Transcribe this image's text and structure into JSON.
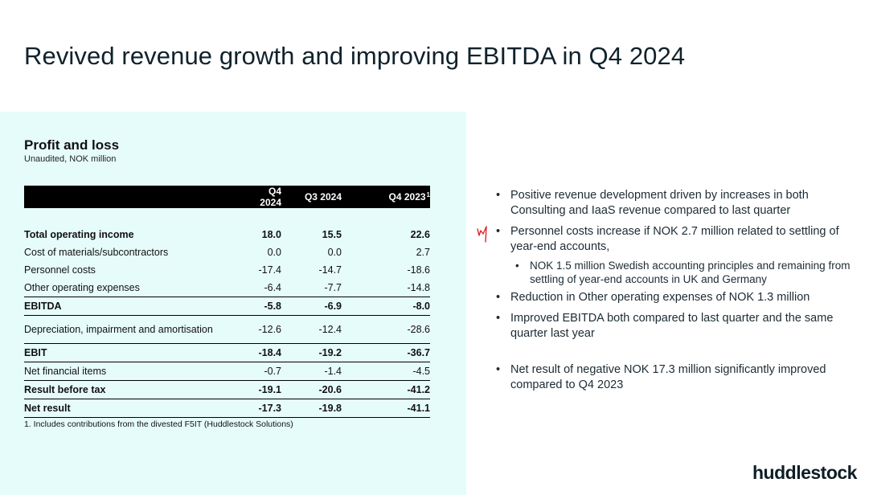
{
  "slide": {
    "title": "Revived revenue growth and improving EBITDA in Q4 2024"
  },
  "profit_loss": {
    "title": "Profit and loss",
    "subtitle": "Unaudited, NOK million",
    "columns": [
      "Q4 2024",
      "Q3 2024",
      "Q4 2023"
    ],
    "column_footnote_marker": "1",
    "rows": [
      {
        "label": "Total operating income",
        "q4_2024": "18.0",
        "q3_2024": "15.5",
        "q4_2023": "22.6"
      },
      {
        "label": "Cost of materials/subcontractors",
        "q4_2024": "0.0",
        "q3_2024": "0.0",
        "q4_2023": "2.7"
      },
      {
        "label": "Personnel costs",
        "q4_2024": "-17.4",
        "q3_2024": "-14.7",
        "q4_2023": "-18.6"
      },
      {
        "label": "Other operating expenses",
        "q4_2024": "-6.4",
        "q3_2024": "-7.7",
        "q4_2023": "-14.8"
      },
      {
        "label": "EBITDA",
        "q4_2024": "-5.8",
        "q3_2024": "-6.9",
        "q4_2023": "-8.0"
      },
      {
        "label": "Depreciation, impairment and amortisation",
        "q4_2024": "-12.6",
        "q3_2024": "-12.4",
        "q4_2023": "-28.6"
      },
      {
        "label": "EBIT",
        "q4_2024": "-18.4",
        "q3_2024": "-19.2",
        "q4_2023": "-36.7"
      },
      {
        "label": "Net financial items",
        "q4_2024": "-0.7",
        "q3_2024": "-1.4",
        "q4_2023": "-4.5"
      },
      {
        "label": "Result before tax",
        "q4_2024": "-19.1",
        "q3_2024": "-20.6",
        "q4_2023": "-41.2"
      },
      {
        "label": "Net result",
        "q4_2024": "-17.3",
        "q3_2024": "-19.8",
        "q4_2023": "-41.1"
      }
    ],
    "footnote": "1. Includes contributions from the divested F5IT (Huddlestock Solutions)"
  },
  "bullets": {
    "items": [
      "Positive revenue development driven by increases in both Consulting and IaaS revenue compared to last quarter",
      "Personnel costs increase if NOK 2.7 million related to settling of year-end accounts,",
      "NOK 1.5 million Swedish accounting principles and remaining from settling of year-end accounts in UK and Germany",
      "Reduction in Other operating expenses of NOK 1.3 million",
      "Improved EBITDA both compared to last quarter and the same quarter last year",
      "Net result of negative NOK 17.3 million significantly improved compared to Q4 2023"
    ]
  },
  "logo": {
    "text": "huddlestock"
  },
  "colors": {
    "panel_bg": "#e6fcfa",
    "header_bg": "#000000",
    "pen_mark": "#e0202a",
    "title_text": "#10222c"
  }
}
